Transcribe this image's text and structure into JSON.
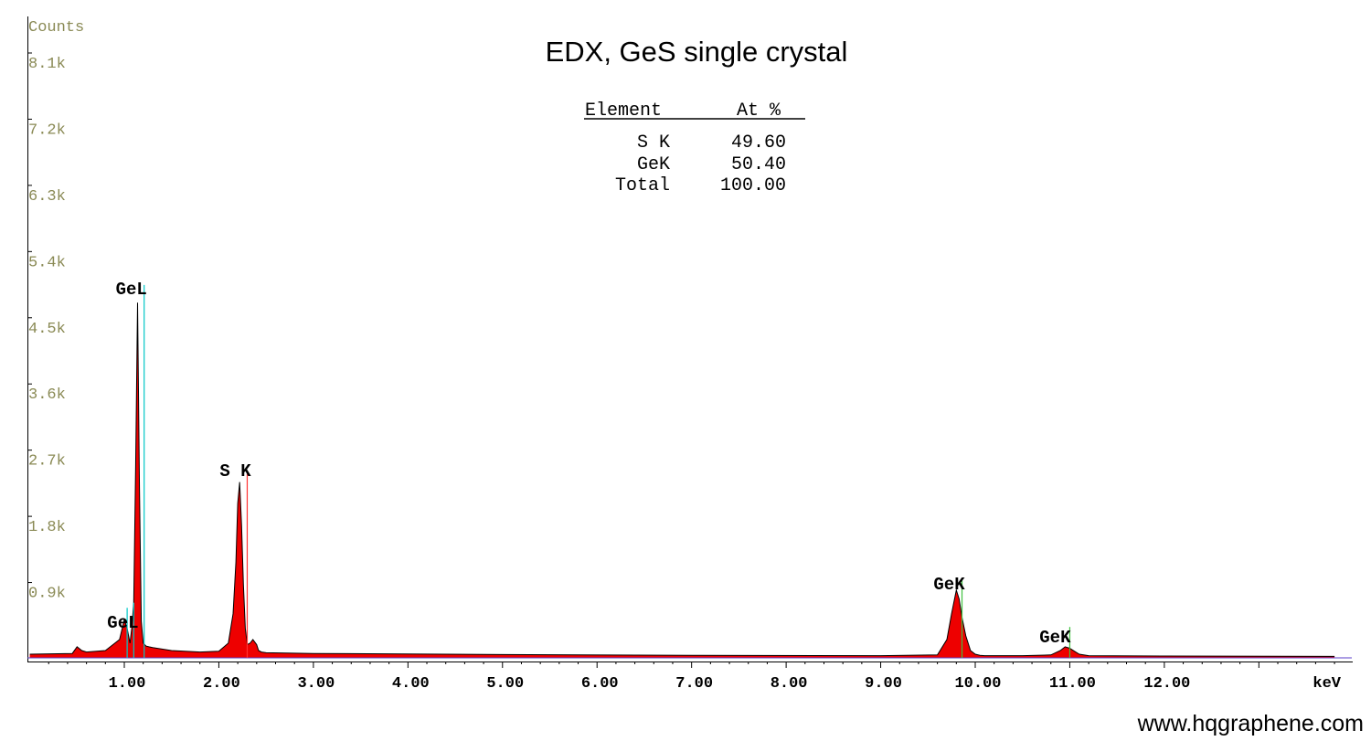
{
  "chart_data": {
    "type": "area",
    "title": "EDX, GeS single crystal",
    "ylabel": "Counts",
    "xlabel": "keV",
    "xlim": [
      0.0,
      13.8
    ],
    "ylim": [
      0,
      8100
    ],
    "x_ticks": [
      1.0,
      2.0,
      3.0,
      4.0,
      5.0,
      6.0,
      7.0,
      8.0,
      9.0,
      10.0,
      11.0,
      12.0
    ],
    "x_tick_labels": [
      "1.00",
      "2.00",
      "3.00",
      "4.00",
      "5.00",
      "6.00",
      "7.00",
      "8.00",
      "9.00",
      "10.00",
      "11.00",
      "12.00"
    ],
    "y_ticks": [
      900,
      1800,
      2700,
      3600,
      4500,
      5400,
      6300,
      7200,
      8100
    ],
    "y_tick_labels": [
      "0.9k",
      "1.8k",
      "2.7k",
      "3.6k",
      "4.5k",
      "5.4k",
      "6.3k",
      "7.2k",
      "8.1k"
    ],
    "fill_color": "#ee0000",
    "outline_color": "#000000",
    "series": [
      {
        "x": [
          0.0,
          0.45,
          0.5,
          0.55,
          0.6,
          0.8,
          0.95,
          1.0,
          1.03,
          1.06,
          1.08,
          1.1,
          1.12,
          1.14,
          1.16,
          1.18,
          1.2,
          1.23,
          1.26,
          1.3,
          1.5,
          1.8,
          2.0,
          2.1,
          2.15,
          2.18,
          2.2,
          2.22,
          2.24,
          2.26,
          2.28,
          2.3,
          2.33,
          2.36,
          2.4,
          2.42,
          2.45,
          2.5,
          3.0,
          5.0,
          7.0,
          9.0,
          9.6,
          9.7,
          9.75,
          9.8,
          9.83,
          9.86,
          9.9,
          9.95,
          10.0,
          10.05,
          10.1,
          10.5,
          10.8,
          10.9,
          10.95,
          11.0,
          11.05,
          11.1,
          11.2,
          12.0,
          13.8
        ],
        "y": [
          50,
          60,
          150,
          100,
          80,
          100,
          250,
          520,
          400,
          200,
          420,
          750,
          2600,
          4830,
          2300,
          500,
          200,
          160,
          150,
          140,
          100,
          80,
          90,
          200,
          600,
          1300,
          2100,
          2390,
          1800,
          1000,
          400,
          180,
          200,
          250,
          180,
          100,
          80,
          70,
          60,
          45,
          35,
          30,
          40,
          250,
          600,
          920,
          800,
          550,
          300,
          100,
          50,
          35,
          30,
          30,
          40,
          100,
          150,
          130,
          90,
          50,
          30,
          25,
          20
        ]
      }
    ],
    "annotations": [
      {
        "label": "GeL",
        "x": 1.21
      },
      {
        "label": "S  K",
        "x": 2.31
      },
      {
        "label": "GeL",
        "x": 1.12
      },
      {
        "label": "GeK",
        "x": 9.86
      },
      {
        "label": "GeK",
        "x": 10.98
      }
    ],
    "marker_lines": [
      {
        "x": 1.03,
        "height": 680,
        "color": "#00c8c8"
      },
      {
        "x": 1.1,
        "height": 750,
        "color": "#00c8c8"
      },
      {
        "x": 1.21,
        "height": 5070,
        "color": "#00c8c8"
      },
      {
        "x": 2.3,
        "height": 2500,
        "color": "#ff3333"
      },
      {
        "x": 9.86,
        "height": 1050,
        "color": "#40c040"
      },
      {
        "x": 11.0,
        "height": 420,
        "color": "#40c040"
      }
    ],
    "table": {
      "headers": [
        "Element",
        "At %"
      ],
      "rows": [
        [
          "S K",
          "49.60"
        ],
        [
          "GeK",
          "50.40"
        ],
        [
          "Total",
          "100.00"
        ]
      ]
    }
  },
  "footer": {
    "website": "www.hqgraphene.com"
  }
}
